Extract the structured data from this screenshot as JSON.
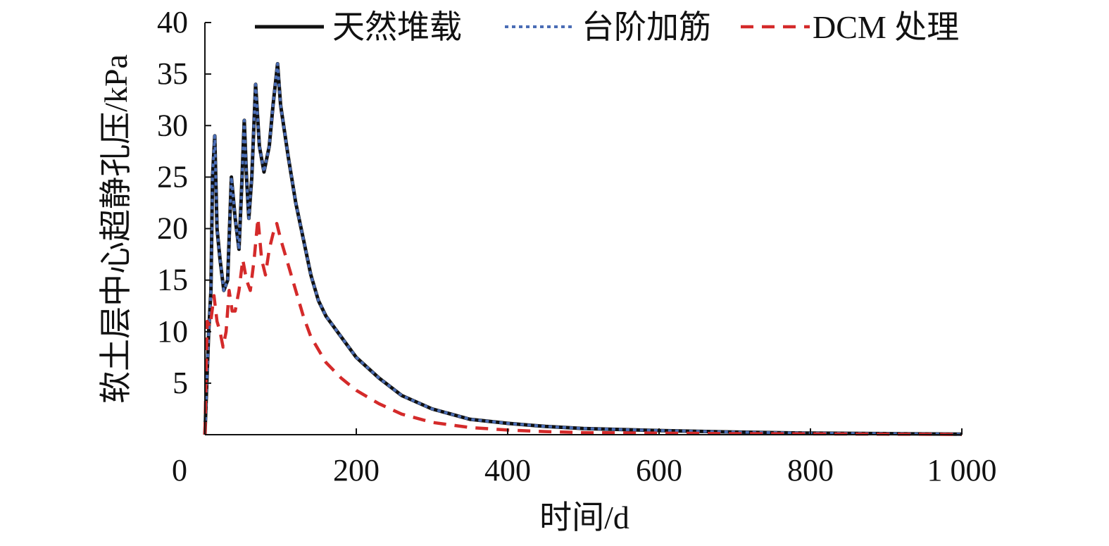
{
  "chart_data": {
    "type": "line",
    "xlabel": "时间/d",
    "ylabel": "软土层中心超静孔压/kPa",
    "xlim": [
      0,
      1000
    ],
    "ylim": [
      0,
      40
    ],
    "x_ticks": [
      0,
      200,
      400,
      600,
      800,
      1000
    ],
    "x_tick_labels": [
      "0",
      "200",
      "400",
      "600",
      "800",
      "1 000"
    ],
    "y_ticks": [
      5,
      10,
      15,
      20,
      25,
      30,
      35,
      40
    ],
    "y_tick_labels": [
      "5",
      "10",
      "15",
      "20",
      "25",
      "30",
      "35",
      "40"
    ],
    "grid": false,
    "legend_position": "top",
    "series": [
      {
        "name": "天然堆载",
        "color": "#111111",
        "dash": "solid",
        "points": [
          [
            0,
            0
          ],
          [
            5,
            10
          ],
          [
            8,
            14
          ],
          [
            10,
            25
          ],
          [
            13,
            29
          ],
          [
            16,
            20
          ],
          [
            20,
            17
          ],
          [
            25,
            14
          ],
          [
            30,
            15
          ],
          [
            35,
            25
          ],
          [
            40,
            21
          ],
          [
            45,
            18
          ],
          [
            48,
            23
          ],
          [
            52,
            30.5
          ],
          [
            55,
            25
          ],
          [
            58,
            21
          ],
          [
            62,
            25
          ],
          [
            67,
            34
          ],
          [
            72,
            28
          ],
          [
            78,
            25.5
          ],
          [
            85,
            28
          ],
          [
            90,
            32
          ],
          [
            96,
            36
          ],
          [
            100,
            32
          ],
          [
            110,
            27
          ],
          [
            120,
            22.5
          ],
          [
            130,
            19
          ],
          [
            140,
            15.5
          ],
          [
            150,
            13
          ],
          [
            160,
            11.5
          ],
          [
            180,
            9.5
          ],
          [
            200,
            7.5
          ],
          [
            230,
            5.5
          ],
          [
            260,
            3.8
          ],
          [
            300,
            2.5
          ],
          [
            350,
            1.5
          ],
          [
            400,
            1.1
          ],
          [
            450,
            0.8
          ],
          [
            500,
            0.6
          ],
          [
            600,
            0.4
          ],
          [
            700,
            0.25
          ],
          [
            800,
            0.15
          ],
          [
            900,
            0.1
          ],
          [
            1000,
            0.05
          ]
        ]
      },
      {
        "name": "台阶加筋",
        "color": "#4a6db5",
        "dash": "dotted",
        "points": [
          [
            0,
            0
          ],
          [
            5,
            10
          ],
          [
            8,
            14
          ],
          [
            10,
            25
          ],
          [
            13,
            29
          ],
          [
            16,
            20
          ],
          [
            20,
            17
          ],
          [
            25,
            14
          ],
          [
            30,
            15
          ],
          [
            35,
            25
          ],
          [
            40,
            21
          ],
          [
            45,
            18
          ],
          [
            48,
            23
          ],
          [
            52,
            30.5
          ],
          [
            55,
            25
          ],
          [
            58,
            21
          ],
          [
            62,
            25
          ],
          [
            67,
            34
          ],
          [
            72,
            28
          ],
          [
            78,
            25.5
          ],
          [
            85,
            28
          ],
          [
            90,
            32
          ],
          [
            96,
            36
          ],
          [
            100,
            32
          ],
          [
            110,
            27
          ],
          [
            120,
            22.5
          ],
          [
            130,
            19
          ],
          [
            140,
            15.5
          ],
          [
            150,
            13
          ],
          [
            160,
            11.5
          ],
          [
            180,
            9.5
          ],
          [
            200,
            7.5
          ],
          [
            230,
            5.5
          ],
          [
            260,
            3.8
          ],
          [
            300,
            2.5
          ],
          [
            350,
            1.5
          ],
          [
            400,
            1.1
          ],
          [
            450,
            0.8
          ],
          [
            500,
            0.6
          ],
          [
            600,
            0.4
          ],
          [
            700,
            0.25
          ],
          [
            800,
            0.15
          ],
          [
            900,
            0.1
          ],
          [
            1000,
            0.05
          ]
        ]
      },
      {
        "name": "DCM 处理",
        "color": "#d42a2a",
        "dash": "dashed",
        "points": [
          [
            0,
            0
          ],
          [
            3,
            11
          ],
          [
            7,
            10.5
          ],
          [
            12,
            13.5
          ],
          [
            16,
            11
          ],
          [
            20,
            10
          ],
          [
            24,
            8.5
          ],
          [
            28,
            10
          ],
          [
            32,
            14
          ],
          [
            36,
            12
          ],
          [
            40,
            12
          ],
          [
            45,
            14
          ],
          [
            50,
            17
          ],
          [
            55,
            15
          ],
          [
            60,
            14
          ],
          [
            65,
            17
          ],
          [
            70,
            21
          ],
          [
            75,
            17
          ],
          [
            80,
            15.5
          ],
          [
            85,
            18
          ],
          [
            90,
            19.5
          ],
          [
            95,
            20.5
          ],
          [
            100,
            19
          ],
          [
            110,
            16.5
          ],
          [
            120,
            14
          ],
          [
            130,
            11.5
          ],
          [
            140,
            9.5
          ],
          [
            160,
            7
          ],
          [
            180,
            5.5
          ],
          [
            200,
            4.3
          ],
          [
            230,
            3
          ],
          [
            260,
            2
          ],
          [
            300,
            1.2
          ],
          [
            350,
            0.7
          ],
          [
            400,
            0.45
          ],
          [
            450,
            0.3
          ],
          [
            500,
            0.2
          ],
          [
            600,
            0.15
          ],
          [
            700,
            0.1
          ],
          [
            800,
            0.08
          ],
          [
            900,
            0.05
          ],
          [
            1000,
            0.03
          ]
        ]
      }
    ]
  }
}
